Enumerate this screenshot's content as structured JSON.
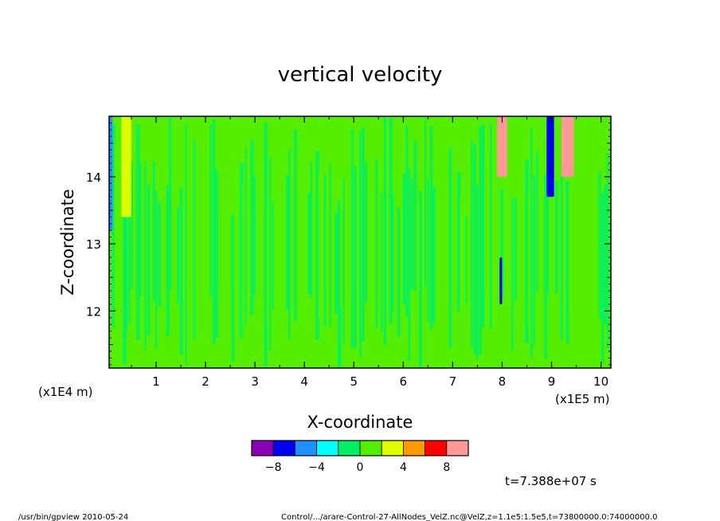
{
  "chart_data": {
    "type": "heatmap",
    "title": "vertical velocity",
    "xlabel": "X-coordinate",
    "ylabel": "Z-coordinate",
    "x_units": "(x1E5 m)",
    "y_units": "(x1E4 m)",
    "xlim": [
      0.05,
      10.2
    ],
    "ylim": [
      11.15,
      14.9
    ],
    "x_ticks": [
      1,
      2,
      3,
      4,
      5,
      6,
      7,
      8,
      9,
      10
    ],
    "y_ticks": [
      12,
      13,
      14
    ],
    "x_tick_labels": [
      "1",
      "2",
      "3",
      "4",
      "5",
      "6",
      "7",
      "8",
      "9",
      "10"
    ],
    "y_tick_labels": [
      "12",
      "13",
      "14"
    ],
    "colorbar": {
      "levels": [
        -10,
        -8,
        -6,
        -4,
        -2,
        0,
        2,
        4,
        6,
        8,
        10
      ],
      "colors": [
        "#8b00b5",
        "#0000ee",
        "#1e90ff",
        "#00ffff",
        "#00ee66",
        "#55ee00",
        "#ddff00",
        "#ff9900",
        "#ff0000",
        "#ff9999"
      ],
      "tick_values": [
        -8,
        -4,
        0,
        4,
        8
      ],
      "tick_labels": [
        "-8",
        "-4",
        "0",
        "4",
        "8"
      ]
    },
    "features": [
      {
        "x": [
          0.05,
          0.12
        ],
        "z": [
          13.2,
          14.9
        ],
        "value": -6
      },
      {
        "x": [
          0.3,
          0.5
        ],
        "z": [
          13.4,
          14.9
        ],
        "value": 3
      },
      {
        "x": [
          7.9,
          8.1
        ],
        "z": [
          14.0,
          14.9
        ],
        "value": 9
      },
      {
        "x": [
          7.95,
          8.0
        ],
        "z": [
          12.1,
          12.8
        ],
        "value": -7
      },
      {
        "x": [
          8.9,
          9.05
        ],
        "z": [
          13.7,
          14.9
        ],
        "value": -8
      },
      {
        "x": [
          9.2,
          9.45
        ],
        "z": [
          14.0,
          14.9
        ],
        "value": 9
      }
    ],
    "grid": false,
    "legend": "bottom"
  },
  "time_label": "t=7.388e+07 s",
  "footer_left": "/usr/bin/gpview   2010-05-24",
  "footer_right": "Control/.../arare-Control-27-AllNodes_VelZ.nc@VelZ,z=1.1e5:1.5e5,t=73800000.0:74000000.0"
}
